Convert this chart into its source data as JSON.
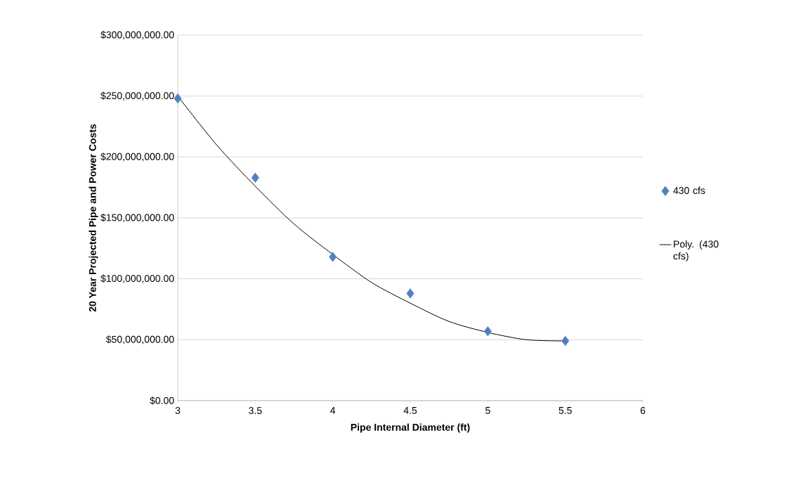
{
  "chart_data": {
    "type": "scatter",
    "xlabel": "Pipe Internal Diameter (ft)",
    "ylabel": "20 Year Projected Pipe and Power Costs",
    "xlim": [
      3,
      6
    ],
    "xticks": [
      3,
      3.5,
      4,
      4.5,
      5,
      5.5,
      6
    ],
    "ylim": [
      0,
      300000000
    ],
    "yticks": [
      {
        "value": 0,
        "label": "$0.00"
      },
      {
        "value": 50000000,
        "label": "$50,000,000.00"
      },
      {
        "value": 100000000,
        "label": "$100,000,000.00"
      },
      {
        "value": 150000000,
        "label": "$150,000,000.00"
      },
      {
        "value": 200000000,
        "label": "$200,000,000.00"
      },
      {
        "value": 250000000,
        "label": "$250,000,000.00"
      },
      {
        "value": 300000000,
        "label": "$300,000,000.00"
      }
    ],
    "grid": "y",
    "legend": "right",
    "series": [
      {
        "name": "430 cfs",
        "marker": "diamond",
        "color": "#4f81bd",
        "x": [
          3,
          3.5,
          4,
          4.5,
          5,
          5.5
        ],
        "values": [
          248000000,
          183000000,
          118000000,
          88000000,
          57000000,
          49000000
        ]
      },
      {
        "name": "Poly. (430 cfs)",
        "type": "line",
        "marker": "none",
        "line_style": "solid",
        "color": "#000000",
        "x": [
          3,
          3.25,
          3.5,
          3.75,
          4,
          4.25,
          4.5,
          4.75,
          5,
          5.25,
          5.5
        ],
        "values": [
          250000000,
          210000000,
          176000000,
          145000000,
          120000000,
          97000000,
          80000000,
          65000000,
          56000000,
          50000000,
          49000000
        ]
      }
    ]
  }
}
